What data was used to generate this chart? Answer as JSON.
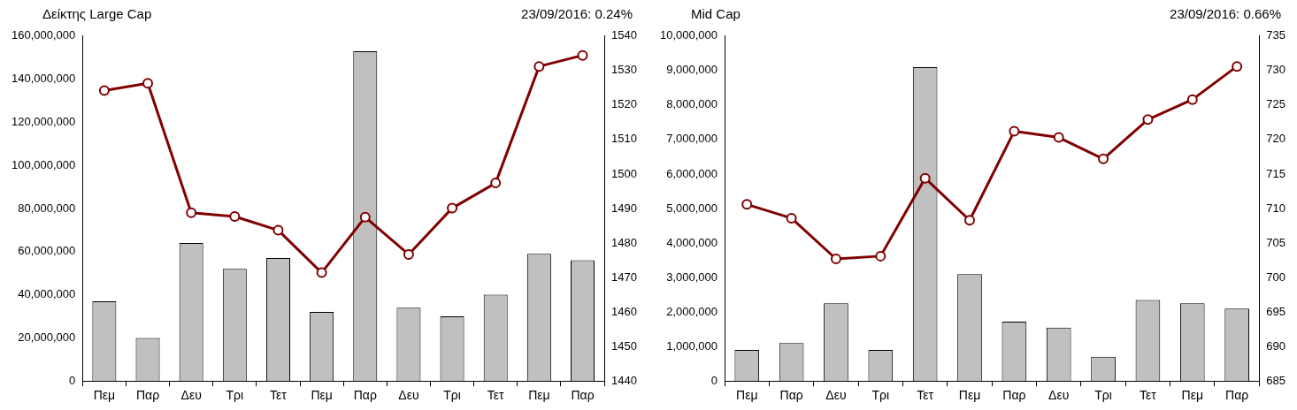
{
  "chart_data": [
    {
      "type": "bar",
      "title": "Δείκτης Large Cap",
      "subtitle": "23/09/2016: 0.24%",
      "categories": [
        "Πεμ",
        "Παρ",
        "Δευ",
        "Τρι",
        "Τετ",
        "Πεμ",
        "Παρ",
        "Δευ",
        "Τρι",
        "Τετ",
        "Πεμ",
        "Παρ"
      ],
      "series": [
        {
          "color": "#c0c0c0",
          "values": [
            37000000,
            20000000,
            64000000,
            52000000,
            57000000,
            32000000,
            153000000,
            34000000,
            30000000,
            40000000,
            59000000,
            56000000
          ]
        },
        {
          "type": "line",
          "axis": "y2",
          "color": "#800000",
          "values": [
            1524.2,
            1526.3,
            1488.8,
            1487.7,
            1483.7,
            1471.4,
            1487.5,
            1476.7,
            1490.1,
            1497.4,
            1531.2,
            1534.4
          ]
        }
      ],
      "ylim": [
        0,
        160000000
      ],
      "yticks": [
        0,
        {
          "value": 20000000,
          "label": "20,000,000"
        },
        {
          "value": 40000000,
          "label": "40,000,000"
        },
        {
          "value": 60000000,
          "label": "60,000,000"
        },
        {
          "value": 80000000,
          "label": "80,000,000"
        },
        {
          "value": 100000000,
          "label": "100,000,000"
        },
        {
          "value": 120000000,
          "label": "120,000,000"
        },
        {
          "value": 140000000,
          "label": "140,000,000"
        },
        {
          "value": 160000000,
          "label": "160,000,000"
        }
      ],
      "y2lim": [
        1440,
        1540
      ],
      "y2ticks": [
        1440,
        1450,
        1460,
        1470,
        1480,
        1490,
        1500,
        1510,
        1520,
        1530,
        1540
      ],
      "grid": false,
      "legend": false,
      "marker": "circle",
      "line_style": "solid"
    },
    {
      "type": "bar",
      "title": "Mid Cap",
      "subtitle": "23/09/2016: 0.66%",
      "categories": [
        "Πεμ",
        "Παρ",
        "Δευ",
        "Τρι",
        "Τετ",
        "Πεμ",
        "Παρ",
        "Δευ",
        "Τρι",
        "Τετ",
        "Πεμ",
        "Παρ"
      ],
      "series": [
        {
          "color": "#c0c0c0",
          "values": [
            900000,
            1100000,
            2250000,
            900000,
            9100000,
            3100000,
            1720000,
            1550000,
            700000,
            2350000,
            2250000,
            2100000
          ]
        },
        {
          "type": "line",
          "axis": "y2",
          "color": "#800000",
          "values": [
            710.6,
            708.6,
            702.7,
            703.1,
            714.4,
            708.3,
            721.2,
            720.3,
            717.2,
            722.9,
            725.8,
            730.6
          ]
        }
      ],
      "ylim": [
        0,
        10000000
      ],
      "yticks": [
        0,
        {
          "value": 1000000,
          "label": "1,000,000"
        },
        {
          "value": 2000000,
          "label": "2,000,000"
        },
        {
          "value": 3000000,
          "label": "3,000,000"
        },
        {
          "value": 4000000,
          "label": "4,000,000"
        },
        {
          "value": 5000000,
          "label": "5,000,000"
        },
        {
          "value": 6000000,
          "label": "6,000,000"
        },
        {
          "value": 7000000,
          "label": "7,000,000"
        },
        {
          "value": 8000000,
          "label": "8,000,000"
        },
        {
          "value": 9000000,
          "label": "9,000,000"
        },
        {
          "value": 10000000,
          "label": "10,000,000"
        }
      ],
      "y2lim": [
        685,
        735
      ],
      "y2ticks": [
        685,
        690,
        695,
        700,
        705,
        710,
        715,
        720,
        725,
        730,
        735
      ],
      "grid": false,
      "legend": false,
      "marker": "circle",
      "line_style": "solid"
    }
  ]
}
